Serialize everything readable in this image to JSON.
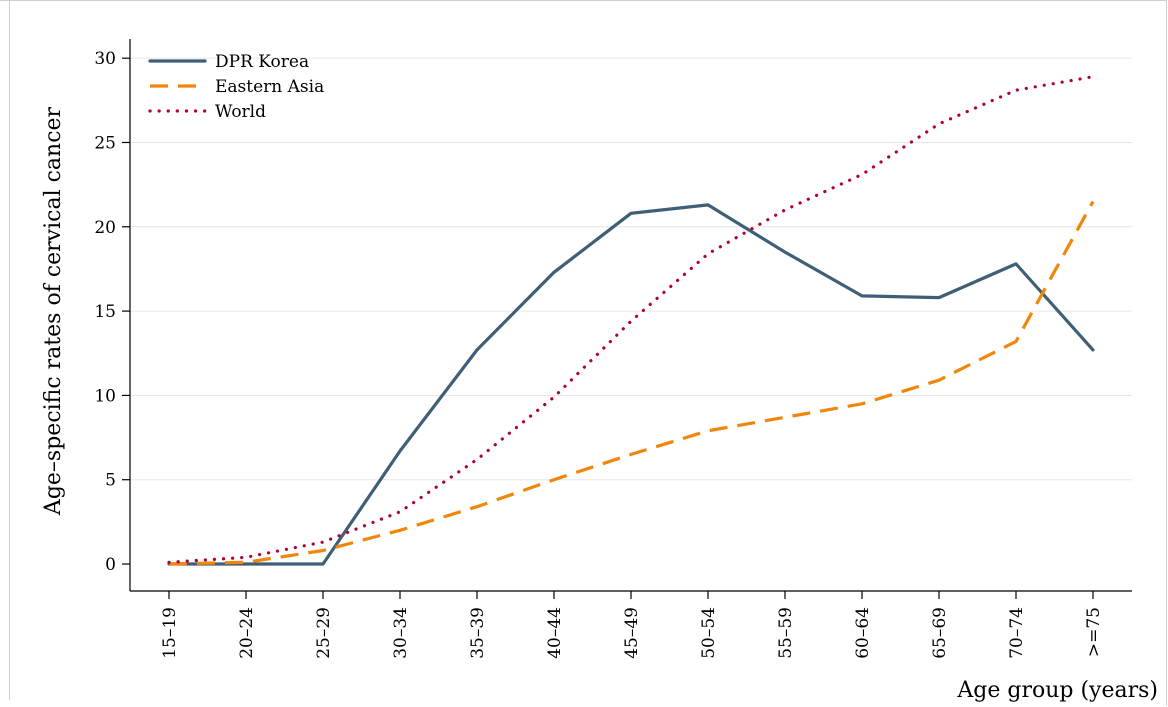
{
  "chart_data": {
    "type": "line",
    "title": "",
    "xlabel": "Age group (years)",
    "ylabel": "Age–specific rates of cervical cancer",
    "categories": [
      "15–19",
      "20–24",
      "25–29",
      "30–34",
      "35–39",
      "40–44",
      "45–49",
      "50–54",
      "55–59",
      "60–64",
      "65–69",
      "70–74",
      ">=75"
    ],
    "yticks": [
      0,
      5,
      10,
      15,
      20,
      25,
      30
    ],
    "ylim": [
      -1.6,
      30.9
    ],
    "grid": true,
    "legend_position": "top-left",
    "series": [
      {
        "name": "DPR Korea",
        "color": "#3e5f76",
        "style": "solid",
        "values": [
          0.0,
          0.0,
          0.0,
          6.7,
          12.7,
          17.3,
          20.8,
          21.3,
          18.5,
          15.9,
          15.8,
          17.8,
          12.7
        ]
      },
      {
        "name": "Eastern Asia",
        "color": "#f0860a",
        "style": "dashed",
        "values": [
          0.0,
          0.1,
          0.8,
          2.0,
          3.4,
          5.0,
          6.5,
          7.9,
          8.7,
          9.5,
          10.9,
          13.2,
          21.5
        ]
      },
      {
        "name": "World",
        "color": "#b0003a",
        "style": "dotted",
        "values": [
          0.1,
          0.4,
          1.3,
          3.1,
          6.2,
          9.9,
          14.4,
          18.4,
          21.0,
          23.1,
          26.1,
          28.1,
          28.9
        ]
      }
    ]
  }
}
